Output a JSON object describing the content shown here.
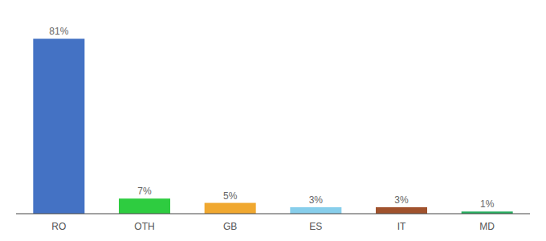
{
  "chart_data": {
    "type": "bar",
    "categories": [
      "RO",
      "OTH",
      "GB",
      "ES",
      "IT",
      "MD"
    ],
    "values": [
      81,
      7,
      5,
      3,
      3,
      1
    ],
    "value_labels": [
      "81%",
      "7%",
      "5%",
      "3%",
      "3%",
      "1%"
    ],
    "colors": [
      "#4472c4",
      "#2ecc40",
      "#f0a830",
      "#87ceeb",
      "#a0522d",
      "#27ae60"
    ],
    "ylim": [
      0,
      90
    ],
    "data_labels": true,
    "tick_labels": "x"
  }
}
